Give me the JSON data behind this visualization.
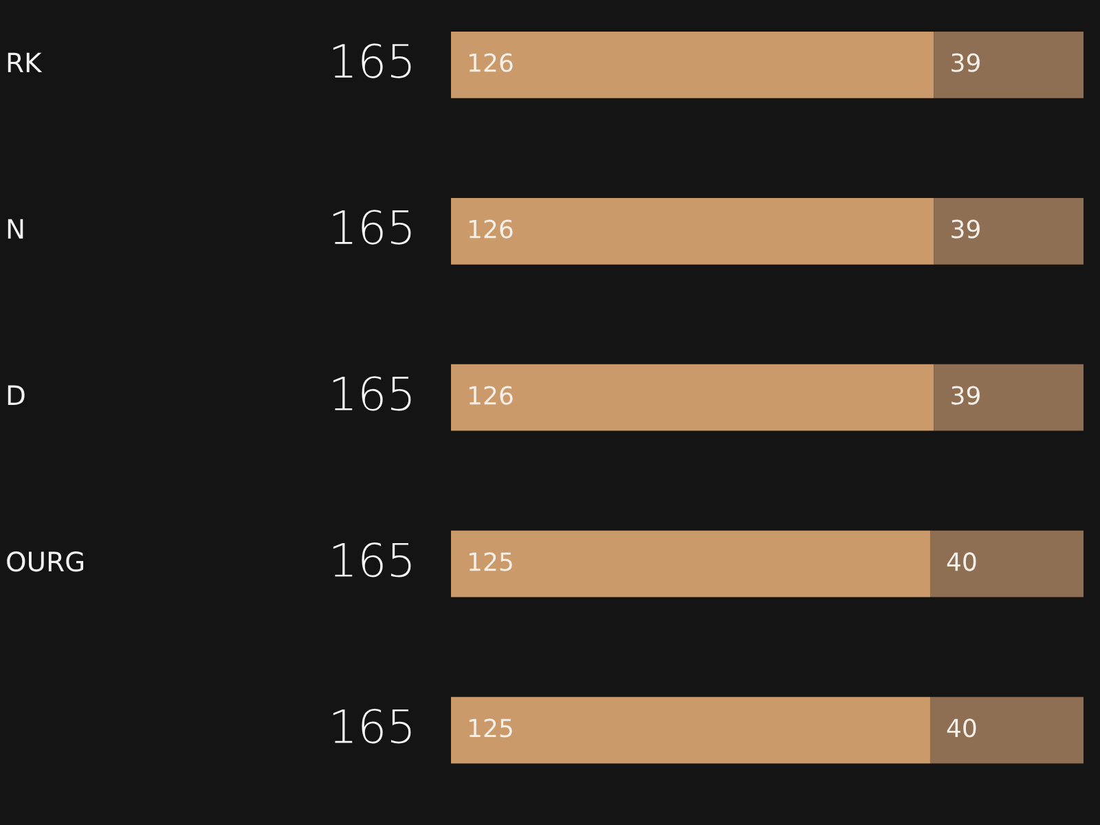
{
  "chart_data": {
    "type": "bar",
    "orientation": "horizontal",
    "stacked": true,
    "categories": [
      "RK",
      "N",
      "D",
      "OURG",
      null
    ],
    "series": [
      {
        "color": "#cb9a6a",
        "values": [
          126,
          126,
          126,
          125,
          125
        ]
      },
      {
        "color": "#8f6f53",
        "values": [
          39,
          39,
          39,
          40,
          40
        ]
      }
    ],
    "xlim": [
      0,
      165
    ],
    "data_labels": true,
    "totals": [
      "165",
      "165",
      "165",
      "165",
      "165"
    ],
    "tick_labels": "y"
  }
}
